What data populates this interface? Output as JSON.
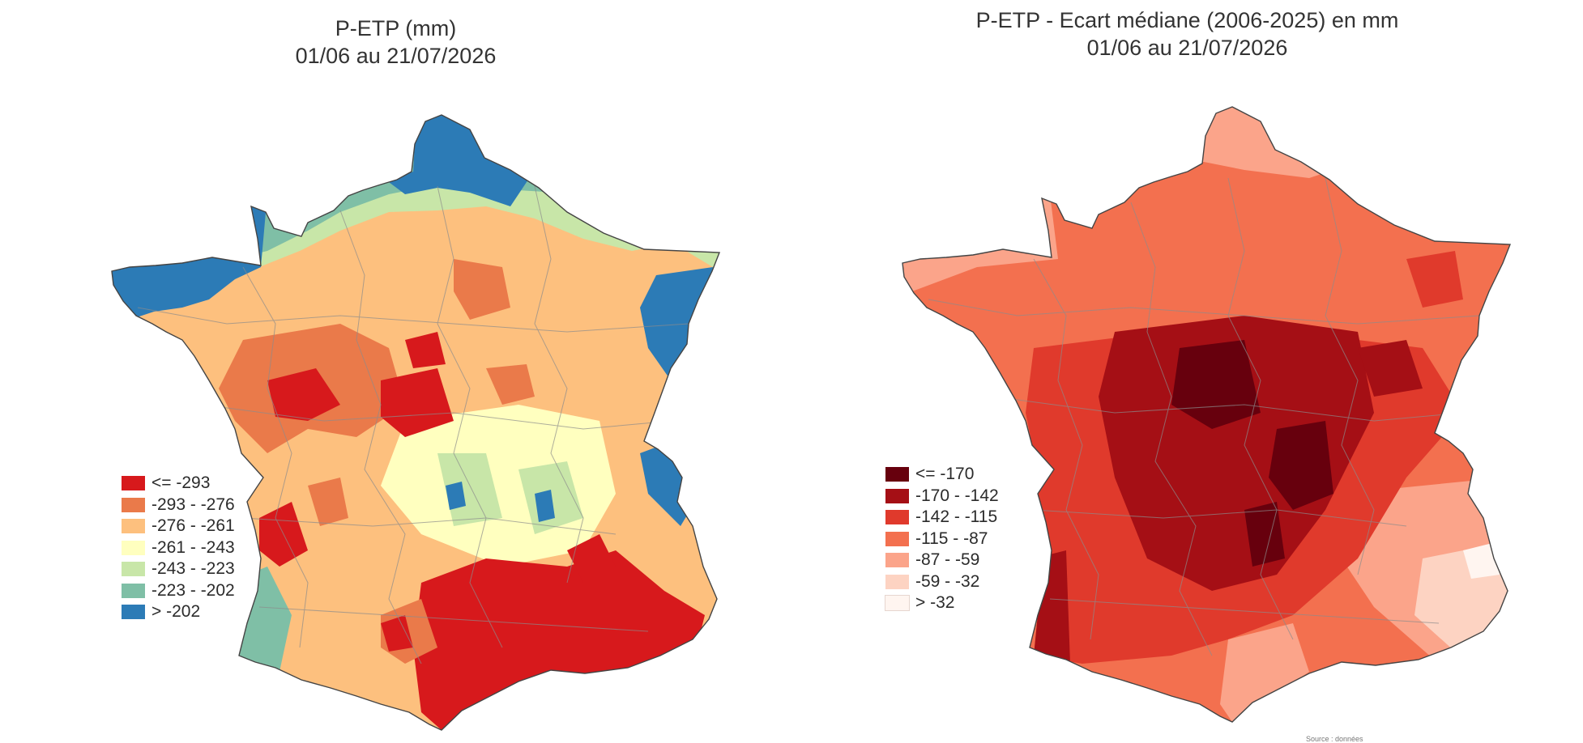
{
  "maps": [
    {
      "title_line1": "P-ETP (mm)",
      "title_line2": "01/06 au 21/07/2026",
      "legend": [
        {
          "label": "<= -293",
          "color": "#d7191c"
        },
        {
          "label": "-293 - -276",
          "color": "#ea7a4a"
        },
        {
          "label": "-276 - -261",
          "color": "#fdc07e"
        },
        {
          "label": "-261 - -243",
          "color": "#ffffbf"
        },
        {
          "label": "-243 - -223",
          "color": "#c8e6a8"
        },
        {
          "label": "-223 - -202",
          "color": "#7fbfa6"
        },
        {
          "label": "> -202",
          "color": "#2c7bb6"
        }
      ]
    },
    {
      "title_line1": "P-ETP - Ecart médiane (2006-2025) en mm",
      "title_line2": "01/06 au 21/07/2026",
      "legend": [
        {
          "label": "<= -170",
          "color": "#67000d"
        },
        {
          "label": "-170 - -142",
          "color": "#a50f15"
        },
        {
          "label": "-142 - -115",
          "color": "#e03a2c"
        },
        {
          "label": "-115 - -87",
          "color": "#f3704f"
        },
        {
          "label": "-87 - -59",
          "color": "#fba48a"
        },
        {
          "label": "-59 - -32",
          "color": "#fdd3c2"
        },
        {
          "label": "> -32",
          "color": "#fff5f0"
        }
      ]
    }
  ],
  "credit": "Source : données"
}
